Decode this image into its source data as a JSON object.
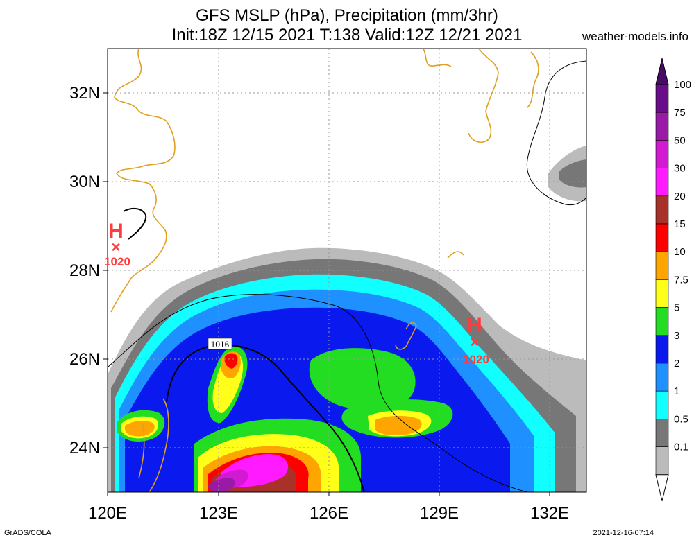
{
  "header": {
    "title_line1": "GFS MSLP (hPa), Precipitation (mm/3hr)",
    "title_line2": "Init:18Z 12/15 2021 T:138 Valid:12Z 12/21 2021",
    "site": "weather-models.info"
  },
  "footer": {
    "left": "GrADS/COLA",
    "right": "2021-12-16-07:14"
  },
  "axes": {
    "x_ticks": [
      "120E",
      "123E",
      "126E",
      "129E",
      "132E"
    ],
    "y_ticks": [
      "32N",
      "30N",
      "28N",
      "26N",
      "24N"
    ]
  },
  "pressure_centers": [
    {
      "letter": "H",
      "value": "1020"
    },
    {
      "letter": "H",
      "value": "1020"
    }
  ],
  "isobar_label": "1016",
  "colorbar": {
    "labels": [
      "100",
      "75",
      "50",
      "30",
      "20",
      "15",
      "10",
      "7.5",
      "5",
      "3",
      "2",
      "1",
      "0.5",
      "0.1"
    ],
    "colors": [
      "#6a0d8a",
      "#9a1aa8",
      "#d21ad2",
      "#ff1aff",
      "#a8322a",
      "#ff0000",
      "#ffa500",
      "#ffff1a",
      "#22dd22",
      "#0a1aee",
      "#1e90ff",
      "#12ffff",
      "#777777",
      "#bbbbbb"
    ]
  },
  "colors": {
    "coastline": "#e0a020",
    "isobar": "#000000",
    "high_marker": "#ff3b3b"
  }
}
